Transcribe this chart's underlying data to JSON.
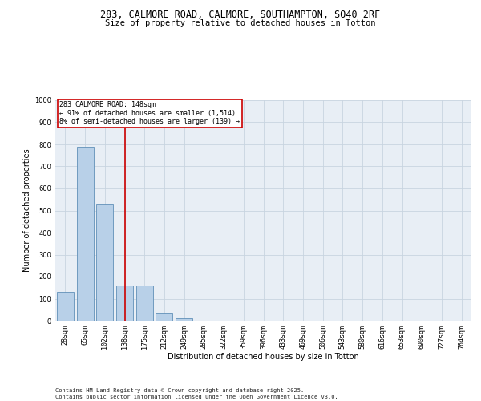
{
  "title_line1": "283, CALMORE ROAD, CALMORE, SOUTHAMPTON, SO40 2RF",
  "title_line2": "Size of property relative to detached houses in Totton",
  "xlabel": "Distribution of detached houses by size in Totton",
  "ylabel": "Number of detached properties",
  "categories": [
    "28sqm",
    "65sqm",
    "102sqm",
    "138sqm",
    "175sqm",
    "212sqm",
    "249sqm",
    "285sqm",
    "322sqm",
    "359sqm",
    "396sqm",
    "433sqm",
    "469sqm",
    "506sqm",
    "543sqm",
    "580sqm",
    "616sqm",
    "653sqm",
    "690sqm",
    "727sqm",
    "764sqm"
  ],
  "values": [
    130,
    790,
    530,
    160,
    160,
    35,
    10,
    0,
    0,
    0,
    0,
    0,
    0,
    0,
    0,
    0,
    0,
    0,
    0,
    0,
    0
  ],
  "bar_color": "#b8d0e8",
  "bar_edge_color": "#6090b8",
  "grid_color": "#c8d4e0",
  "bg_color": "#e8eef5",
  "vline_x_index": 3,
  "vline_color": "#cc0000",
  "annotation_text": "283 CALMORE ROAD: 148sqm\n← 91% of detached houses are smaller (1,514)\n8% of semi-detached houses are larger (139) →",
  "annotation_box_color": "#cc0000",
  "ylim": [
    0,
    1000
  ],
  "yticks": [
    0,
    100,
    200,
    300,
    400,
    500,
    600,
    700,
    800,
    900,
    1000
  ],
  "footer": "Contains HM Land Registry data © Crown copyright and database right 2025.\nContains public sector information licensed under the Open Government Licence v3.0.",
  "title_fontsize": 8.5,
  "subtitle_fontsize": 7.5,
  "axis_label_fontsize": 7,
  "tick_fontsize": 6,
  "footer_fontsize": 5
}
